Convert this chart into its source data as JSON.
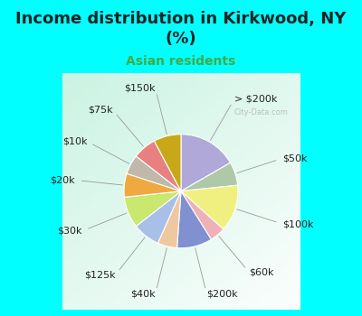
{
  "title": "Income distribution in Kirkwood, NY\n(%)",
  "subtitle": "Asian residents",
  "background_color": "#00FFFF",
  "chart_bg_gradient": true,
  "labels": [
    "> $200k",
    "$50k",
    "$100k",
    "$60k",
    "$200k",
    "$40k",
    "$125k",
    "$30k",
    "$20k",
    "$10k",
    "$75k",
    "$150k"
  ],
  "values": [
    15,
    6,
    12,
    4,
    9,
    5,
    7,
    8,
    6,
    5,
    6,
    7
  ],
  "colors": [
    "#b0a8d8",
    "#aec8a8",
    "#f0f080",
    "#f0b0b8",
    "#8090d0",
    "#f0c8a0",
    "#a8c0e8",
    "#c8e870",
    "#f0a840",
    "#c0b8a8",
    "#e88080",
    "#c8a818"
  ],
  "label_fontsize": 8,
  "title_fontsize": 13,
  "subtitle_fontsize": 10,
  "title_color": "#222222",
  "subtitle_color": "#44aa44",
  "watermark": "City-Data.com"
}
